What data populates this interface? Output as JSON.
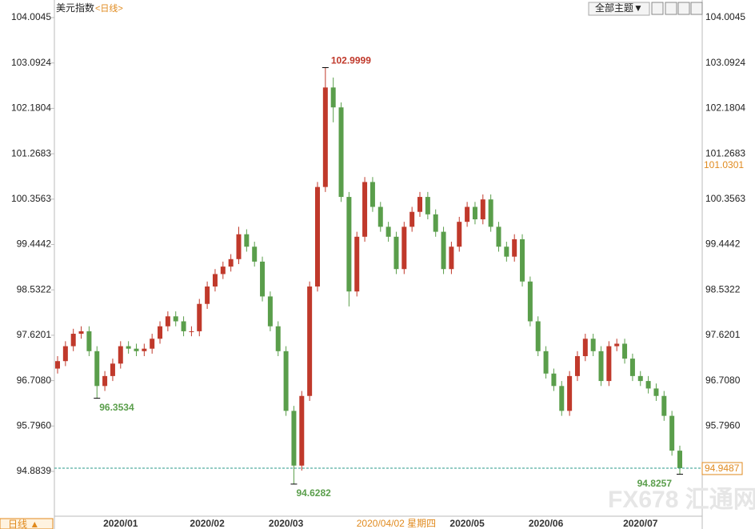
{
  "ui": {
    "title": "美元指数",
    "period": "<日线>",
    "theme_button": "全部主题▼",
    "footer_period": "日线 ▲",
    "watermark": "FX678 汇通网"
  },
  "chart_data": {
    "type": "candlestick",
    "categories": [
      null,
      null,
      null,
      null,
      null,
      null,
      null,
      null,
      "2020/01",
      null,
      null,
      null,
      null,
      null,
      null,
      null,
      null,
      null,
      null,
      "2020/02",
      null,
      null,
      null,
      null,
      null,
      null,
      null,
      null,
      null,
      "2020/03",
      null,
      null,
      null,
      null,
      null,
      null,
      null,
      null,
      null,
      null,
      null,
      null,
      null,
      "2020/04/02 星期四",
      null,
      null,
      null,
      null,
      null,
      null,
      null,
      null,
      "2020/05",
      null,
      null,
      null,
      null,
      null,
      null,
      null,
      null,
      null,
      "2020/06",
      null,
      null,
      null,
      null,
      null,
      null,
      null,
      null,
      null,
      null,
      null,
      "2020/07",
      null,
      null,
      null,
      null,
      null
    ],
    "crosshair_index": 43,
    "open": [
      96.95,
      97.1,
      97.4,
      97.65,
      97.7,
      97.3,
      96.6,
      96.8,
      97.05,
      97.4,
      97.35,
      97.3,
      97.35,
      97.55,
      97.8,
      98.0,
      97.9,
      97.7,
      97.7,
      98.25,
      98.6,
      98.85,
      99.0,
      99.15,
      99.65,
      99.4,
      99.1,
      98.4,
      97.8,
      97.3,
      96.1,
      95.0,
      96.4,
      98.6,
      100.6,
      102.6,
      102.2,
      100.4,
      98.5,
      99.6,
      100.7,
      100.2,
      99.8,
      99.6,
      98.95,
      99.8,
      100.1,
      100.4,
      100.05,
      99.7,
      98.95,
      99.4,
      99.9,
      100.2,
      99.95,
      100.35,
      99.8,
      99.4,
      99.2,
      99.55,
      98.7,
      97.9,
      97.3,
      96.85,
      96.6,
      96.1,
      96.8,
      97.2,
      97.55,
      97.3,
      96.7,
      97.4,
      97.45,
      97.15,
      96.8,
      96.7,
      96.55,
      96.4,
      96.0,
      95.3
    ],
    "high": [
      97.2,
      97.5,
      97.75,
      97.8,
      97.8,
      97.4,
      96.9,
      97.15,
      97.5,
      97.5,
      97.45,
      97.45,
      97.65,
      97.9,
      98.1,
      98.1,
      98.0,
      97.8,
      98.35,
      98.7,
      98.95,
      99.1,
      99.25,
      99.8,
      99.75,
      99.5,
      99.2,
      98.5,
      97.9,
      97.4,
      96.2,
      96.5,
      98.7,
      100.7,
      102.9999,
      102.8,
      102.3,
      100.5,
      99.7,
      100.8,
      100.8,
      100.3,
      99.9,
      99.7,
      99.9,
      100.2,
      100.5,
      100.5,
      100.15,
      99.8,
      99.5,
      100.0,
      100.3,
      100.3,
      100.45,
      100.45,
      99.9,
      99.5,
      99.65,
      99.65,
      98.8,
      98.0,
      97.4,
      96.95,
      96.7,
      96.9,
      97.3,
      97.65,
      97.65,
      97.4,
      97.5,
      97.55,
      97.55,
      97.25,
      96.9,
      96.8,
      96.65,
      96.5,
      96.1,
      95.4
    ],
    "low": [
      96.85,
      97.0,
      97.3,
      97.55,
      97.2,
      96.3534,
      96.5,
      96.7,
      96.95,
      97.25,
      97.2,
      97.2,
      97.25,
      97.45,
      97.7,
      97.8,
      97.6,
      97.6,
      97.6,
      98.15,
      98.5,
      98.75,
      98.9,
      99.05,
      99.3,
      99.0,
      98.3,
      97.7,
      97.2,
      96.0,
      94.6282,
      94.9,
      96.3,
      98.5,
      100.5,
      101.9,
      100.3,
      98.2,
      98.4,
      99.5,
      100.1,
      99.7,
      99.5,
      98.85,
      98.85,
      99.7,
      100.0,
      99.95,
      99.6,
      98.85,
      98.85,
      99.3,
      99.8,
      99.85,
      99.85,
      99.7,
      99.3,
      99.1,
      99.1,
      98.6,
      97.8,
      97.2,
      96.75,
      96.5,
      96.0,
      96.0,
      96.7,
      97.1,
      97.2,
      96.6,
      96.6,
      97.3,
      97.05,
      96.7,
      96.6,
      96.45,
      96.3,
      95.9,
      95.2,
      94.8257
    ],
    "close": [
      97.1,
      97.4,
      97.65,
      97.7,
      97.3,
      96.6,
      96.8,
      97.05,
      97.4,
      97.35,
      97.3,
      97.35,
      97.55,
      97.8,
      98.0,
      97.9,
      97.7,
      97.7,
      98.25,
      98.6,
      98.85,
      99.0,
      99.15,
      99.65,
      99.4,
      99.1,
      98.4,
      97.8,
      97.3,
      96.1,
      95.0,
      96.4,
      98.6,
      100.6,
      102.6,
      102.2,
      100.4,
      98.5,
      99.6,
      100.7,
      100.2,
      99.8,
      99.6,
      98.95,
      99.8,
      100.1,
      100.4,
      100.05,
      99.7,
      98.95,
      99.4,
      99.9,
      100.2,
      99.95,
      100.35,
      99.8,
      99.4,
      99.2,
      99.55,
      98.7,
      97.9,
      97.3,
      96.85,
      96.6,
      96.1,
      96.8,
      97.2,
      97.55,
      97.3,
      96.7,
      97.4,
      97.45,
      97.15,
      96.8,
      96.7,
      96.55,
      96.4,
      96.0,
      95.3,
      94.9487
    ],
    "up_color": "#c0392b",
    "down_color": "#5a9e4b",
    "marked": {
      "high": [
        34
      ],
      "low": [
        5,
        30,
        79
      ]
    },
    "reference_price": 101.0301,
    "ylim": [
      93.983,
      104.0045
    ],
    "yticks": [
      104.0045,
      103.0924,
      102.1804,
      101.2683,
      100.3563,
      99.4442,
      98.5322,
      97.6201,
      {
        "value": 96.708,
        "label": "96.7080"
      },
      {
        "value": 95.796,
        "label": "95.7960"
      },
      94.8839
    ]
  }
}
